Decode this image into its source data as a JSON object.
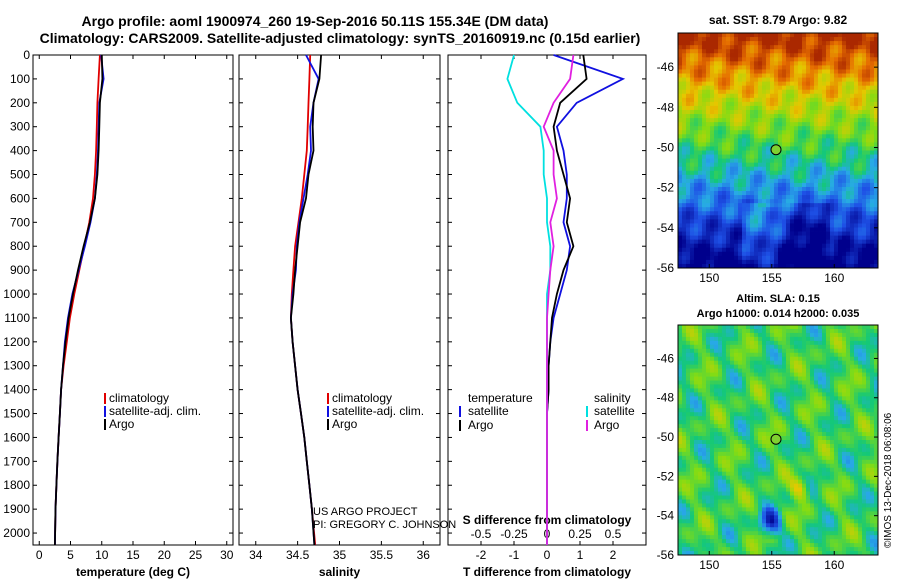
{
  "header": {
    "title_line1": "Argo profile: aoml 1900974_260 19-Sep-2016 50.11S 155.34E (DM data)",
    "title_line2": "Climatology: CARS2009. Satellite-adjusted climatology: synTS_20160919.nc (0.15d earlier)"
  },
  "depth_ticks": [
    "0",
    "100",
    "200",
    "300",
    "400",
    "500",
    "600",
    "700",
    "800",
    "900",
    "1000",
    "1100",
    "1200",
    "1300",
    "1400",
    "1500",
    "1600",
    "1700",
    "1800",
    "1900",
    "2000"
  ],
  "credit": {
    "line1": "US ARGO PROJECT",
    "line2": "PI: GREGORY C. JOHNSON"
  },
  "watermark": "©IMOS 13-Dec-2018 06:08:06",
  "colors": {
    "climatology": "#e00000",
    "satellite": "#1010e0",
    "argo": "#000000",
    "sal_satellite": "#00e0e0",
    "sal_argo": "#e020e0"
  },
  "chart_data": [
    {
      "type": "line",
      "xlabel": "temperature (deg C)",
      "xlim": [
        -1,
        31
      ],
      "ylim": [
        2050,
        0
      ],
      "xticks": [
        0,
        5,
        10,
        15,
        20,
        25,
        30
      ],
      "legend": {
        "position": "lower-right",
        "entries": [
          "climatology",
          "satellite-adj. clim.",
          "Argo"
        ]
      },
      "series": [
        {
          "name": "climatology",
          "color": "#e00000",
          "x": [
            9.7,
            9.5,
            9.3,
            9.2,
            9.1,
            8.9,
            8.6,
            8.0,
            7.2,
            6.4,
            5.6,
            4.9,
            4.4,
            3.9,
            3.5,
            3.3,
            3.1,
            2.9,
            2.75,
            2.6,
            2.5
          ],
          "y": [
            0,
            100,
            200,
            300,
            400,
            500,
            600,
            700,
            800,
            900,
            1000,
            1100,
            1200,
            1300,
            1400,
            1500,
            1600,
            1700,
            1800,
            1900,
            2050
          ]
        },
        {
          "name": "satellite-adj. clim.",
          "color": "#1010e0",
          "x": [
            9.9,
            10.3,
            9.6,
            9.5,
            9.4,
            9.2,
            8.9,
            8.2,
            7.3,
            6.3,
            5.3,
            4.6,
            4.1,
            3.8,
            3.5,
            3.3,
            3.1,
            2.9,
            2.75,
            2.6,
            2.5
          ],
          "y": [
            0,
            100,
            200,
            300,
            400,
            500,
            600,
            700,
            800,
            900,
            1000,
            1100,
            1200,
            1300,
            1400,
            1500,
            1600,
            1700,
            1800,
            1900,
            2050
          ]
        },
        {
          "name": "Argo",
          "color": "#000000",
          "x": [
            10.0,
            10.1,
            9.7,
            9.6,
            9.5,
            9.3,
            8.9,
            8.1,
            7.1,
            6.2,
            5.4,
            4.7,
            4.2,
            3.8,
            3.5,
            3.3,
            3.1,
            2.9,
            2.75,
            2.6,
            2.5
          ],
          "y": [
            0,
            100,
            200,
            300,
            400,
            500,
            600,
            700,
            800,
            900,
            1000,
            1100,
            1200,
            1300,
            1400,
            1500,
            1600,
            1700,
            1800,
            1900,
            2050
          ]
        }
      ]
    },
    {
      "type": "line",
      "xlabel": "salinity",
      "xlim": [
        33.8,
        36.2
      ],
      "ylim": [
        2050,
        0
      ],
      "xticks": [
        34,
        34.5,
        35,
        35.5,
        36
      ],
      "xticklabels": [
        "34",
        "34.5",
        "35",
        "35.5",
        "36"
      ],
      "legend": {
        "position": "lower-right",
        "entries": [
          "climatology",
          "satellite-adj. clim.",
          "Argo"
        ]
      },
      "series": [
        {
          "name": "climatology",
          "color": "#e00000",
          "x": [
            34.65,
            34.64,
            34.63,
            34.62,
            34.61,
            34.58,
            34.55,
            34.51,
            34.47,
            34.45,
            34.43,
            34.42,
            34.44,
            34.47,
            34.5,
            34.54,
            34.58,
            34.61,
            34.64,
            34.67,
            34.71
          ],
          "y": [
            0,
            100,
            200,
            300,
            400,
            500,
            600,
            700,
            800,
            900,
            1000,
            1100,
            1200,
            1300,
            1400,
            1500,
            1600,
            1700,
            1800,
            1900,
            2050
          ]
        },
        {
          "name": "satellite-adj. clim.",
          "color": "#1010e0",
          "x": [
            34.6,
            34.75,
            34.69,
            34.65,
            34.66,
            34.62,
            34.57,
            34.52,
            34.49,
            34.48,
            34.44,
            34.42,
            34.44,
            34.47,
            34.5,
            34.54,
            34.58,
            34.61,
            34.64,
            34.67,
            34.7
          ],
          "y": [
            0,
            100,
            200,
            300,
            400,
            500,
            600,
            700,
            800,
            900,
            1000,
            1100,
            1200,
            1300,
            1400,
            1500,
            1600,
            1700,
            1800,
            1900,
            2050
          ]
        },
        {
          "name": "Argo",
          "color": "#000000",
          "x": [
            34.78,
            34.76,
            34.69,
            34.68,
            34.69,
            34.63,
            34.6,
            34.53,
            34.5,
            34.47,
            34.45,
            34.42,
            34.44,
            34.47,
            34.5,
            34.54,
            34.58,
            34.61,
            34.64,
            34.67,
            34.7
          ],
          "y": [
            0,
            100,
            200,
            300,
            400,
            500,
            600,
            700,
            800,
            900,
            1000,
            1100,
            1200,
            1300,
            1400,
            1500,
            1600,
            1700,
            1800,
            1900,
            2050
          ]
        }
      ]
    },
    {
      "type": "line",
      "xlabel": "T difference from climatology",
      "xlabel_top": "S difference from climatology",
      "xlim": [
        -3,
        3
      ],
      "ylim": [
        2050,
        0
      ],
      "xticks": [
        -2,
        -1,
        0,
        1,
        2
      ],
      "xticklabels": [
        "-2",
        "-1",
        "0",
        "1",
        "2"
      ],
      "xticks_top": [
        -0.5,
        -0.25,
        0,
        0.25,
        0.5
      ],
      "xticklabels_top": [
        "-0.5",
        "-0.25",
        "0",
        "0.25",
        "0.5"
      ],
      "legend": {
        "position": "lower",
        "left_title": "temperature",
        "right_title": "salinity",
        "left_entries": [
          "satellite",
          "Argo"
        ],
        "right_entries": [
          "satellite",
          "Argo"
        ]
      },
      "series": [
        {
          "name": "satellite",
          "group": "temperature",
          "color": "#1010e0",
          "x": [
            0.2,
            2.3,
            0.9,
            0.3,
            0.5,
            0.6,
            0.6,
            0.5,
            0.7,
            0.6,
            0.4,
            0.2,
            0.1,
            0.05,
            0.05,
            0.0,
            0.0,
            0.0,
            0.0,
            0.0,
            0.0
          ],
          "y": [
            0,
            100,
            200,
            300,
            400,
            500,
            600,
            700,
            800,
            900,
            1000,
            1100,
            1200,
            1300,
            1400,
            1500,
            1600,
            1700,
            1800,
            1900,
            2050
          ]
        },
        {
          "name": "Argo",
          "group": "temperature",
          "color": "#000000",
          "x": [
            1.1,
            1.2,
            0.4,
            0.2,
            0.3,
            0.5,
            0.7,
            0.6,
            0.8,
            0.5,
            0.3,
            0.15,
            0.1,
            0.05,
            0.05,
            0.0,
            0.0,
            0.0,
            0.0,
            0.0,
            0.0
          ],
          "y": [
            0,
            100,
            200,
            300,
            400,
            500,
            600,
            700,
            800,
            900,
            1000,
            1100,
            1200,
            1300,
            1400,
            1500,
            1600,
            1700,
            1800,
            1900,
            2050
          ]
        },
        {
          "name": "satellite",
          "group": "salinity",
          "color": "#00e0e0",
          "x": [
            -1.0,
            -1.2,
            -0.9,
            -0.2,
            -0.1,
            -0.1,
            0.0,
            0.0,
            0.1,
            0.1,
            0.0,
            0.0,
            0.0,
            0.0,
            0.0,
            0.0,
            0.0,
            0.0,
            0.0,
            0.0,
            0.0
          ],
          "y": [
            0,
            100,
            200,
            300,
            400,
            500,
            600,
            700,
            800,
            900,
            1000,
            1100,
            1200,
            1300,
            1400,
            1500,
            1600,
            1700,
            1800,
            1900,
            2050
          ]
        },
        {
          "name": "Argo",
          "group": "salinity",
          "color": "#e020e0",
          "x": [
            0.8,
            0.7,
            0.2,
            -0.1,
            0.2,
            0.2,
            0.3,
            0.1,
            0.2,
            0.1,
            0.05,
            0.0,
            0.0,
            0.0,
            0.0,
            0.0,
            0.0,
            0.0,
            0.0,
            0.0,
            0.0
          ],
          "y": [
            0,
            100,
            200,
            300,
            400,
            500,
            600,
            700,
            800,
            900,
            1000,
            1100,
            1200,
            1300,
            1400,
            1500,
            1600,
            1700,
            1800,
            1900,
            2050
          ]
        }
      ]
    },
    {
      "type": "heatmap",
      "title": "sat. SST: 8.79 Argo: 9.82",
      "xlim": [
        147.5,
        163.5
      ],
      "ylim": [
        -56,
        -44.3
      ],
      "xticks": [
        150,
        155,
        160
      ],
      "yticks": [
        -56,
        -54,
        -52,
        -50,
        -48,
        -46
      ],
      "marker": {
        "lon": 155.34,
        "lat": -50.11
      }
    },
    {
      "type": "heatmap",
      "title": "Altim. SLA: 0.15",
      "subtitle": "Argo h1000: 0.014 h2000: 0.035",
      "xlim": [
        147.5,
        163.5
      ],
      "ylim": [
        -56,
        -44.3
      ],
      "xticks": [
        150,
        155,
        160
      ],
      "yticks": [
        -56,
        -54,
        -52,
        -50,
        -48,
        -46
      ],
      "marker": {
        "lon": 155.34,
        "lat": -50.11
      }
    }
  ]
}
